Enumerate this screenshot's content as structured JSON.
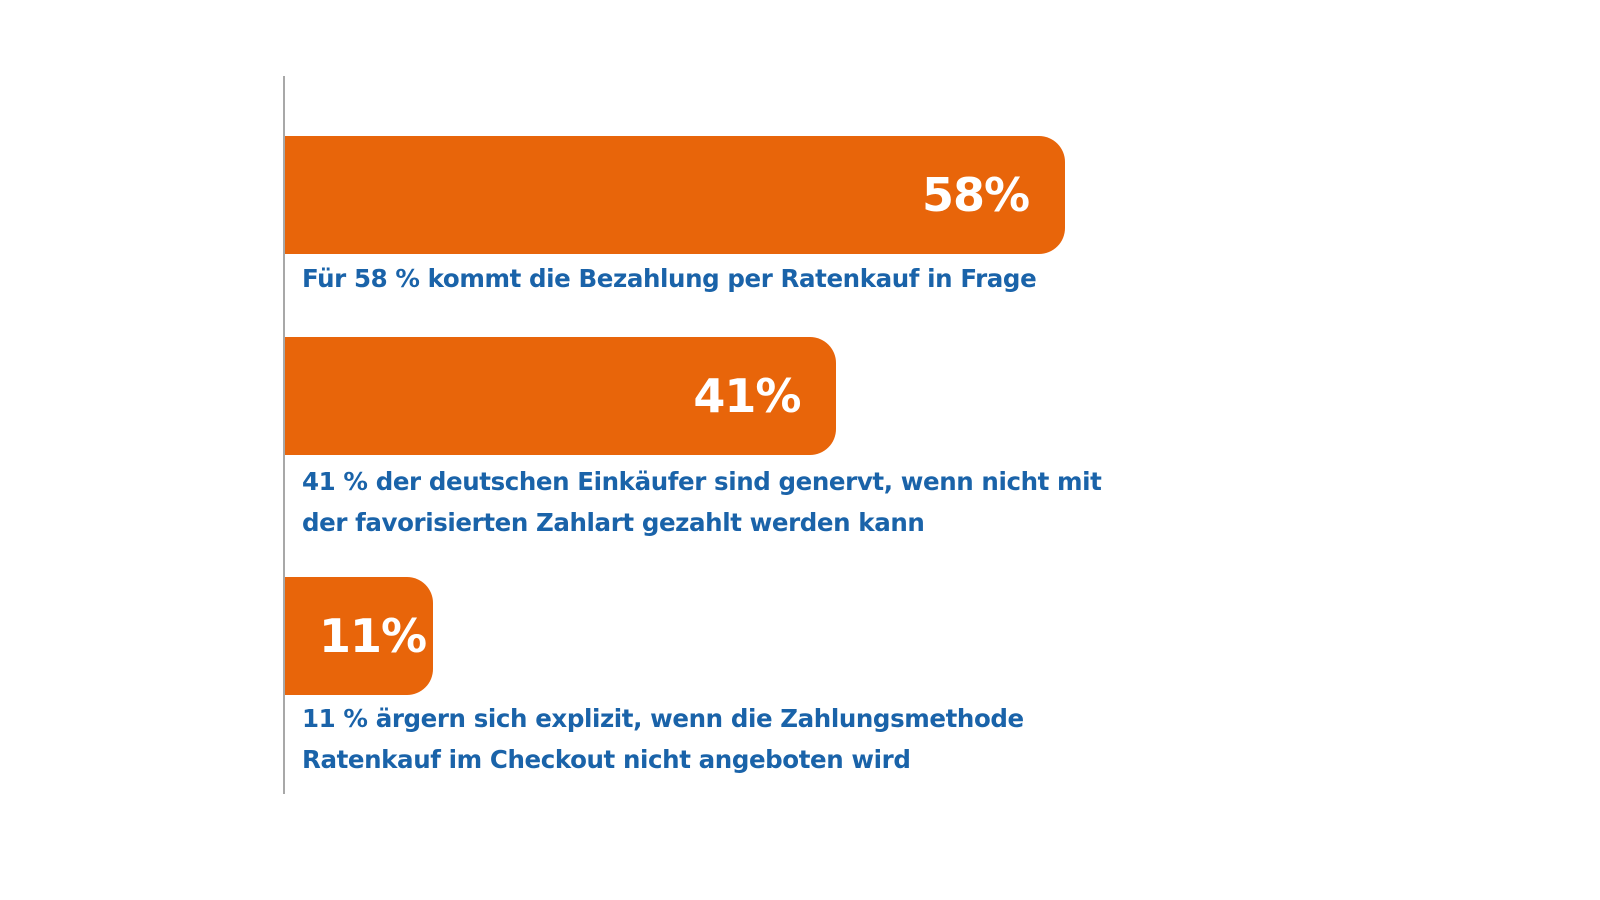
{
  "chart_data": {
    "type": "bar",
    "orientation": "horizontal",
    "categories": [
      "Für 58 % kommt die Bezahlung per Ratenkauf in Frage",
      "41 % der deutschen Einkäufer sind genervt, wenn nicht mit der favorisierten Zahlart gezahlt werden kann",
      "11 % ärgern sich explizit, wenn die Zahlungsmethode Ratenkauf im Checkout nicht angeboten wird"
    ],
    "values": [
      58,
      41,
      11
    ],
    "value_labels": [
      "58%",
      "41%",
      "11%"
    ],
    "descriptions": [
      [
        "Für 58 % kommt die Bezahlung per Ratenkauf in Frage"
      ],
      [
        "41 % der deutschen Einkäufer sind genervt, wenn nicht mit",
        "der favorisierten Zahlart gezahlt werden kann"
      ],
      [
        "11 % ärgern sich explizit, wenn die Zahlungsmethode",
        "Ratenkauf im Checkout nicht angeboten wird"
      ]
    ],
    "title": "",
    "xlabel": "",
    "ylabel": "",
    "xlim": [
      0,
      100
    ],
    "grid": false,
    "legend": "none"
  },
  "colors": {
    "bar": "#e8650a",
    "bar_label": "#ffffff",
    "description_text": "#1a63a9",
    "axis": "#a8a8a8",
    "background": "#ffffff"
  }
}
